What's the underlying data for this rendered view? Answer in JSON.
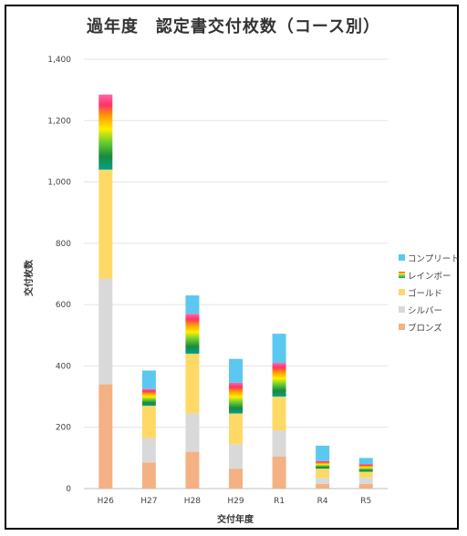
{
  "chart_data": {
    "type": "bar",
    "stacked": true,
    "title": "過年度　認定書交付枚数（コース別）",
    "xlabel": "交付年度",
    "ylabel": "交付枚数",
    "ylim": [
      0,
      1400
    ],
    "yticks": [
      0,
      200,
      400,
      600,
      800,
      1000,
      1200,
      1400
    ],
    "ytick_labels": [
      "0",
      "200",
      "400",
      "600",
      "800",
      "1,000",
      "1,200",
      "1,400"
    ],
    "grid": true,
    "legend_position": "right",
    "categories": [
      "H26",
      "H27",
      "H28",
      "H29",
      "R1",
      "R4",
      "R5"
    ],
    "series": [
      {
        "name": "ブロンズ",
        "color": "#f4b183",
        "values": [
          340,
          85,
          120,
          65,
          105,
          15,
          15
        ]
      },
      {
        "name": "シルバー",
        "color": "#d9d9d9",
        "values": [
          345,
          80,
          125,
          80,
          85,
          20,
          20
        ]
      },
      {
        "name": "ゴールド",
        "color": "#ffd966",
        "values": [
          355,
          105,
          195,
          100,
          110,
          30,
          20
        ]
      },
      {
        "name": "レインボー",
        "color": "rainbow",
        "values": [
          245,
          55,
          130,
          100,
          110,
          25,
          25
        ]
      },
      {
        "name": "コンプリート",
        "color": "#5bc8f0",
        "values": [
          0,
          60,
          60,
          78,
          95,
          50,
          20
        ]
      }
    ]
  }
}
